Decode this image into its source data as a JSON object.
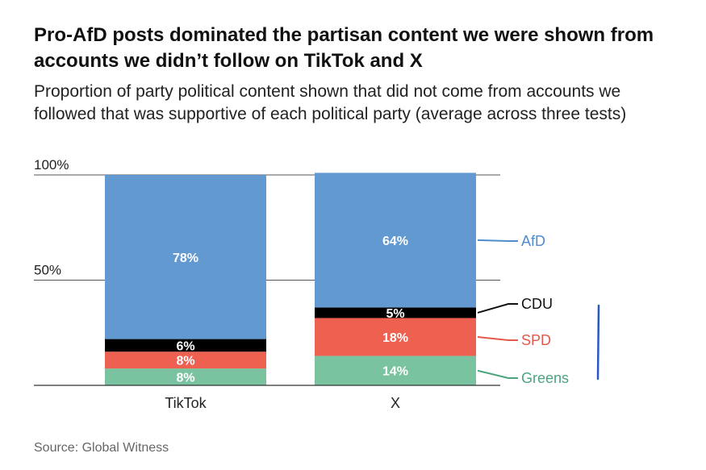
{
  "title": "Pro-AfD posts dominated the partisan content we were shown from accounts we didn’t follow on TikTok and X",
  "subtitle": "Proportion of party political content shown that did not come from accounts we followed that was supportive of each political party (average across three tests)",
  "source": "Source: Global Witness",
  "chart_data": {
    "type": "bar",
    "stacked": true,
    "categories": [
      "TikTok",
      "X"
    ],
    "series": [
      {
        "name": "Greens",
        "color": "#79c3a0",
        "label_color": "#4aa57f",
        "values": [
          8,
          14
        ],
        "labels": [
          "8%",
          "14%"
        ]
      },
      {
        "name": "SPD",
        "color": "#ee6150",
        "label_color": "#e5594a",
        "values": [
          8,
          18
        ],
        "labels": [
          "8%",
          "18%"
        ]
      },
      {
        "name": "CDU",
        "color": "#000000",
        "label_color": "#111111",
        "values": [
          6,
          5
        ],
        "labels": [
          "6%",
          "5%"
        ]
      },
      {
        "name": "AfD",
        "color": "#6399d1",
        "label_color": "#4f8ccc",
        "values": [
          78,
          64
        ],
        "labels": [
          "78%",
          "64%"
        ]
      }
    ],
    "y_ticks": [
      {
        "value": 100,
        "label": "100%"
      },
      {
        "value": 50,
        "label": "50%"
      }
    ],
    "ylim": [
      0,
      100
    ],
    "grid": true,
    "legend": "right, direct labels",
    "xlabel": "",
    "ylabel": ""
  }
}
